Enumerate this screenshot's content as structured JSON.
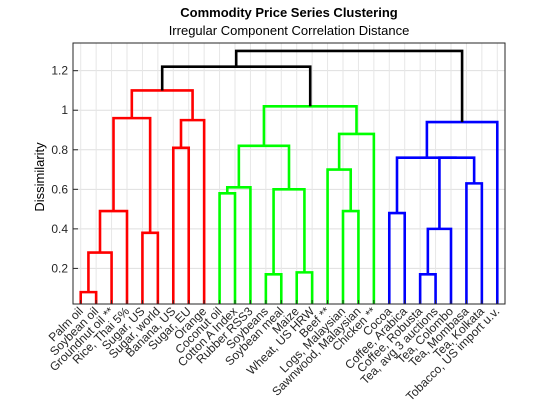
{
  "chart_data": {
    "type": "dendrogram",
    "title": "Commodity Price Series Clustering",
    "subtitle": "Irregular Component Correlation Distance",
    "xlabel": "",
    "ylabel": "Dissimilarity",
    "ylim": [
      0.02,
      1.34
    ],
    "yticks": [
      "0.2",
      "0.4",
      "0.6",
      "0.8",
      "1",
      "1.2"
    ],
    "grid": true,
    "leaves": [
      "Palm oil",
      "Soybean oil",
      "Groundnut oil **",
      "Rice, Thai 5%",
      "Sugar, US",
      "Sugar, world",
      "Banana, US",
      "Sugar, EU",
      "Orange",
      "Coconut oil",
      "Cotton A Index",
      "Rubber RSS3",
      "Soybeans",
      "Soybean meal",
      "Maize",
      "Wheat, US HRW",
      "Beef **",
      "Logs, Malaysian",
      "Sawnwood, Malaysian",
      "Chicken **",
      "Cocoa",
      "Coffee, Arabica",
      "Coffee, Robusta",
      "Tea, avg 3 auctions",
      "Tea, Colombo",
      "Tea, Mombasa",
      "Tea, Kolkata",
      "Tobacco, US import u.v."
    ],
    "colors": {
      "red": "#ff0000",
      "green": "#00ff00",
      "blue": "#0000ff",
      "black": "#000000"
    },
    "links": [
      {
        "a": "Palm oil",
        "b": "Soybean oil",
        "h": 0.08,
        "color": "red"
      },
      {
        "a": "c1",
        "b": "Groundnut oil **",
        "h": 0.28,
        "color": "red"
      },
      {
        "a": "c2",
        "b": "Rice, Thai 5%",
        "h": 0.49,
        "color": "red"
      },
      {
        "a": "Sugar, US",
        "b": "Sugar, world",
        "h": 0.38,
        "color": "red"
      },
      {
        "a": "c3",
        "b": "c4",
        "h": 0.96,
        "color": "red"
      },
      {
        "a": "Banana, US",
        "b": "Sugar, EU",
        "h": 0.81,
        "color": "red"
      },
      {
        "a": "c6",
        "b": "Orange",
        "h": 0.95,
        "color": "red"
      },
      {
        "a": "c5",
        "b": "c7",
        "h": 1.1,
        "color": "red"
      },
      {
        "a": "Coconut oil",
        "b": "Cotton A Index",
        "h": 0.58,
        "color": "green"
      },
      {
        "a": "c9",
        "b": "Rubber RSS3",
        "h": 0.61,
        "color": "green"
      },
      {
        "a": "Soybeans",
        "b": "Soybean meal",
        "h": 0.17,
        "color": "green"
      },
      {
        "a": "Maize",
        "b": "Wheat, US HRW",
        "h": 0.18,
        "color": "green"
      },
      {
        "a": "c11",
        "b": "c12",
        "h": 0.6,
        "color": "green"
      },
      {
        "a": "c10",
        "b": "c13",
        "h": 0.82,
        "color": "green"
      },
      {
        "a": "Logs, Malaysian",
        "b": "Sawnwood, Malaysian",
        "h": 0.49,
        "color": "green"
      },
      {
        "a": "Beef **",
        "b": "c15",
        "h": 0.7,
        "color": "green"
      },
      {
        "a": "c16",
        "b": "Chicken **",
        "h": 0.88,
        "color": "green"
      },
      {
        "a": "c14",
        "b": "c17",
        "h": 1.02,
        "color": "green"
      },
      {
        "a": "Cocoa",
        "b": "Coffee, Arabica",
        "h": 0.48,
        "color": "blue"
      },
      {
        "a": "Coffee, Robusta",
        "b": "Tea, avg 3 auctions",
        "h": 0.17,
        "color": "blue"
      },
      {
        "a": "Tea, Colombo",
        "b": "Tea, Mombasa",
        "h": 0.19,
        "color": "blue"
      },
      {
        "a": "c21",
        "b": "Tea, Kolkata",
        "h": 0.4,
        "color": "blue"
      },
      {
        "a": "c22",
        "b": "Tobacco, US import u.v.",
        "h": 0.63,
        "color": "blue"
      },
      {
        "a": "c20",
        "b": "c23",
        "h": 0.76,
        "color": "blue"
      },
      {
        "a": "c19",
        "b": "c24",
        "h": 0.76,
        "color": "blue"
      },
      {
        "a": "c25",
        "b": "c25",
        "h": 0.76,
        "color": "blue"
      },
      {
        "a": "c8",
        "b": "c18",
        "h": 1.22,
        "color": "black"
      },
      {
        "a": "c25",
        "b": "c25",
        "h": 0.94,
        "color": "blue"
      },
      {
        "a": "c27",
        "b": "c28",
        "h": 1.3,
        "color": "black"
      }
    ]
  }
}
